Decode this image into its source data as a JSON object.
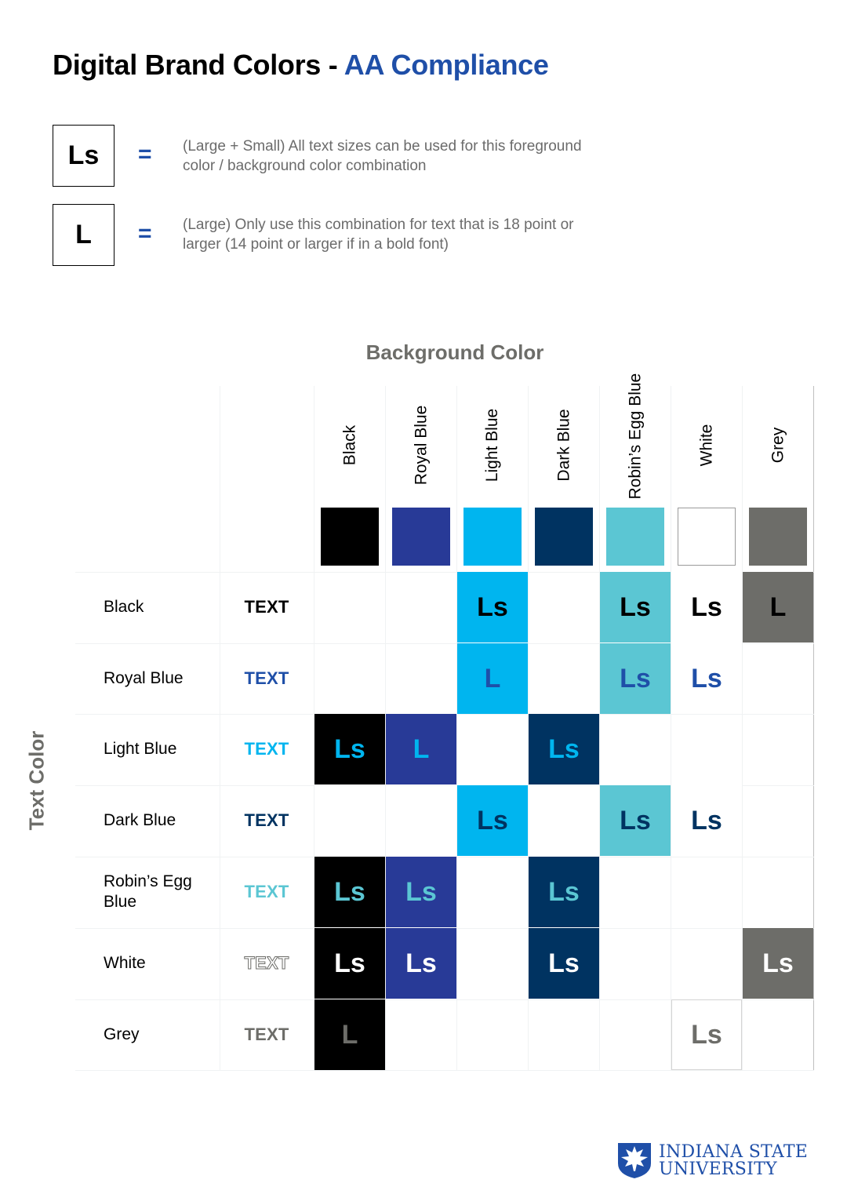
{
  "title": {
    "main": "Digital Brand Colors - ",
    "accent": "AA Compliance"
  },
  "legend": [
    {
      "symbol": "Ls",
      "equals": "=",
      "description": "(Large + Small) All text sizes can be used for this foreground color / background color combination"
    },
    {
      "symbol": "L",
      "equals": "=",
      "description": "(Large) Only use this combination for text that is 18 point or larger (14 point or larger if in a bold font)"
    }
  ],
  "headings": {
    "background": "Background Color",
    "text": "Text Color"
  },
  "colors": {
    "black": "#000000",
    "royal_blue": "#283a97",
    "light_blue": "#00b5ef",
    "dark_blue": "#003361",
    "robins_egg_blue": "#5bc6d3",
    "white": "#ffffff",
    "grey": "#6d6d69",
    "text_royal_blue": "#1f4fa8",
    "text_dark_blue": "#003361"
  },
  "columns": [
    {
      "label": "Black",
      "color": "#000000"
    },
    {
      "label": "Royal Blue",
      "color": "#283a97"
    },
    {
      "label": "Light Blue",
      "color": "#00b5ef"
    },
    {
      "label": "Dark Blue",
      "color": "#003361"
    },
    {
      "label": "Robin’s Egg Blue",
      "color": "#5bc6d3"
    },
    {
      "label": "White",
      "color": "#ffffff"
    },
    {
      "label": "Grey",
      "color": "#6d6d69"
    }
  ],
  "rows": [
    {
      "name": "Black",
      "sample": "TEXT",
      "text_color": "#000000",
      "cells": [
        null,
        null,
        "Ls",
        null,
        "Ls",
        "Ls",
        "L"
      ]
    },
    {
      "name": "Royal Blue",
      "sample": "TEXT",
      "text_color": "#1f4fa8",
      "cells": [
        null,
        null,
        "L",
        null,
        "Ls",
        "Ls",
        null
      ]
    },
    {
      "name": "Light Blue",
      "sample": "TEXT",
      "text_color": "#00b5ef",
      "cells": [
        "Ls",
        "L",
        null,
        "Ls",
        null,
        null,
        null
      ]
    },
    {
      "name": "Dark Blue",
      "sample": "TEXT",
      "text_color": "#003361",
      "cells": [
        null,
        null,
        "Ls",
        null,
        "Ls",
        "Ls",
        null
      ]
    },
    {
      "name": "Robin’s Egg Blue",
      "sample": "TEXT",
      "text_color": "#5bc6d3",
      "cells": [
        "Ls",
        "Ls",
        null,
        "Ls",
        null,
        null,
        null
      ]
    },
    {
      "name": "White",
      "sample": "TEXT",
      "text_color": "#ffffff",
      "cells": [
        "Ls",
        "Ls",
        null,
        "Ls",
        null,
        null,
        "Ls"
      ]
    },
    {
      "name": "Grey",
      "sample": "TEXT",
      "text_color": "#6d6d69",
      "cells": [
        "L",
        null,
        null,
        null,
        null,
        "Ls",
        null
      ]
    }
  ],
  "logo": {
    "line1": "INDIANA STATE",
    "line2": "UNIVERSITY",
    "icon": "sycamore-leaf-icon"
  }
}
